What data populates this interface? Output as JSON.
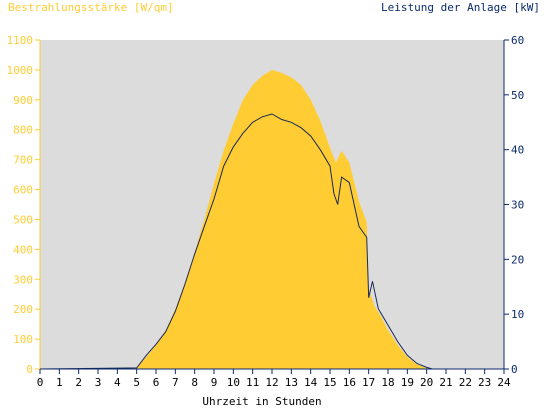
{
  "chart_data": {
    "type": "area",
    "title_left": "Bestrahlungsstärke [W/qm]",
    "title_right": "Leistung der Anlage [kW]",
    "xlabel": "Uhrzeit in Stunden",
    "x_ticks": [
      "0",
      "1",
      "2",
      "3",
      "4",
      "5",
      "6",
      "7",
      "8",
      "9",
      "10",
      "11",
      "12",
      "13",
      "14",
      "15",
      "16",
      "17",
      "18",
      "19",
      "20",
      "21",
      "22",
      "23",
      "24"
    ],
    "xlim": [
      0,
      24
    ],
    "y_left": {
      "ylim": [
        0,
        1100
      ],
      "ticks": [
        "0",
        "100",
        "200",
        "300",
        "400",
        "500",
        "600",
        "700",
        "800",
        "900",
        "1000",
        "1100"
      ]
    },
    "y_right": {
      "ylim": [
        0,
        60
      ],
      "ticks": [
        "0",
        "10",
        "20",
        "30",
        "40",
        "50",
        "60"
      ]
    },
    "grid": false,
    "series": [
      {
        "axis": "left",
        "kind": "area",
        "x": [
          5.0,
          5.5,
          6.0,
          6.5,
          7.0,
          7.5,
          8.0,
          8.5,
          9.0,
          9.5,
          10.0,
          10.5,
          11.0,
          11.5,
          12.0,
          12.5,
          13.0,
          13.5,
          14.0,
          14.5,
          15.0,
          15.3,
          15.6,
          16.0,
          16.5,
          16.9,
          17.0,
          17.3,
          17.6,
          18.0,
          18.5,
          19.0,
          19.5,
          20.0,
          20.3
        ],
        "values": [
          5,
          40,
          80,
          130,
          200,
          290,
          390,
          500,
          620,
          730,
          820,
          900,
          950,
          980,
          1000,
          990,
          975,
          950,
          900,
          830,
          740,
          690,
          730,
          690,
          560,
          490,
          270,
          210,
          180,
          130,
          80,
          40,
          15,
          3,
          0
        ]
      },
      {
        "axis": "right",
        "kind": "line",
        "x": [
          5.0,
          5.5,
          6.0,
          6.5,
          7.0,
          7.5,
          8.0,
          8.5,
          9.0,
          9.5,
          10.0,
          10.5,
          11.0,
          11.5,
          12.0,
          12.5,
          13.0,
          13.5,
          14.0,
          14.5,
          15.0,
          15.2,
          15.4,
          15.6,
          16.0,
          16.5,
          16.9,
          17.0,
          17.2,
          17.5,
          18.0,
          18.5,
          19.0,
          19.5,
          20.0,
          20.3
        ],
        "values": [
          0.2,
          2.5,
          4.5,
          6.8,
          10.5,
          15.5,
          21,
          26,
          31,
          37,
          40.5,
          43,
          45,
          46,
          46.5,
          45.5,
          45,
          44,
          42.5,
          40,
          37,
          32,
          30,
          35,
          34,
          26,
          24,
          13,
          16,
          11,
          8,
          5,
          2.5,
          1,
          0.3,
          0
        ]
      }
    ],
    "colors": {
      "plot_background": "#dcdcdc",
      "area": "#ffcc33",
      "line": "#1a2a55",
      "left_axis": "#ffcc33",
      "right_axis": "#0b2a6e",
      "x_axis_text": "#000000"
    }
  }
}
